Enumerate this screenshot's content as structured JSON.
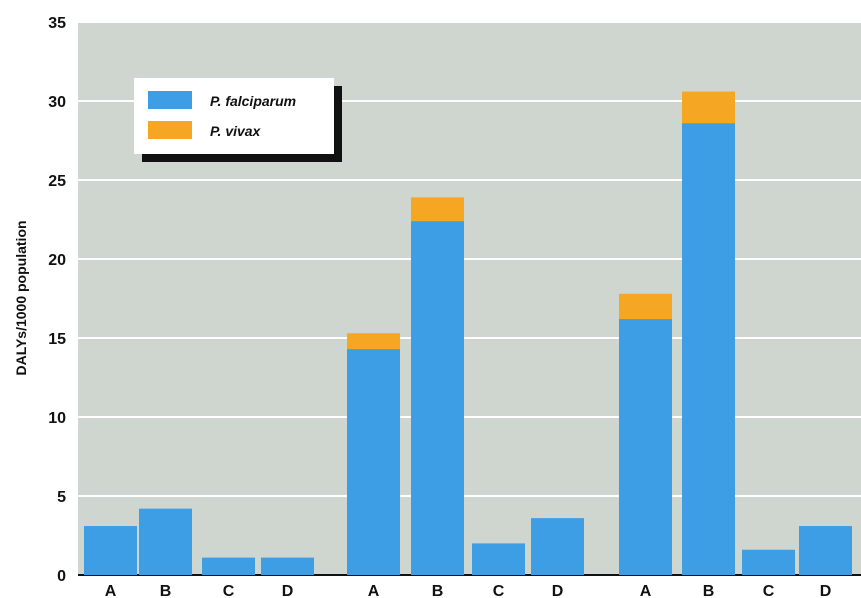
{
  "chart_data": {
    "type": "bar",
    "stacked": true,
    "categories": [
      "A",
      "B",
      "C",
      "D",
      "A",
      "B",
      "C",
      "D",
      "A",
      "B",
      "C",
      "D"
    ],
    "series": [
      {
        "name": "P. falciparum",
        "color": "#3d9ee6",
        "values": [
          3.1,
          4.2,
          1.1,
          1.1,
          14.3,
          22.4,
          2.0,
          3.6,
          16.2,
          28.6,
          1.6,
          3.1
        ]
      },
      {
        "name": "P. vivax",
        "color": "#f5a623",
        "values": [
          0,
          0,
          0,
          0,
          1.0,
          1.5,
          0,
          0,
          1.6,
          2.0,
          0,
          0
        ]
      }
    ],
    "ylabel": "DALYs/1000 population",
    "xlabel": "",
    "ylim": [
      0,
      35
    ],
    "yticks": [
      0,
      5,
      10,
      15,
      20,
      25,
      30,
      35
    ],
    "grid": true,
    "legend": "top-left",
    "background": "#cfd6d0"
  }
}
